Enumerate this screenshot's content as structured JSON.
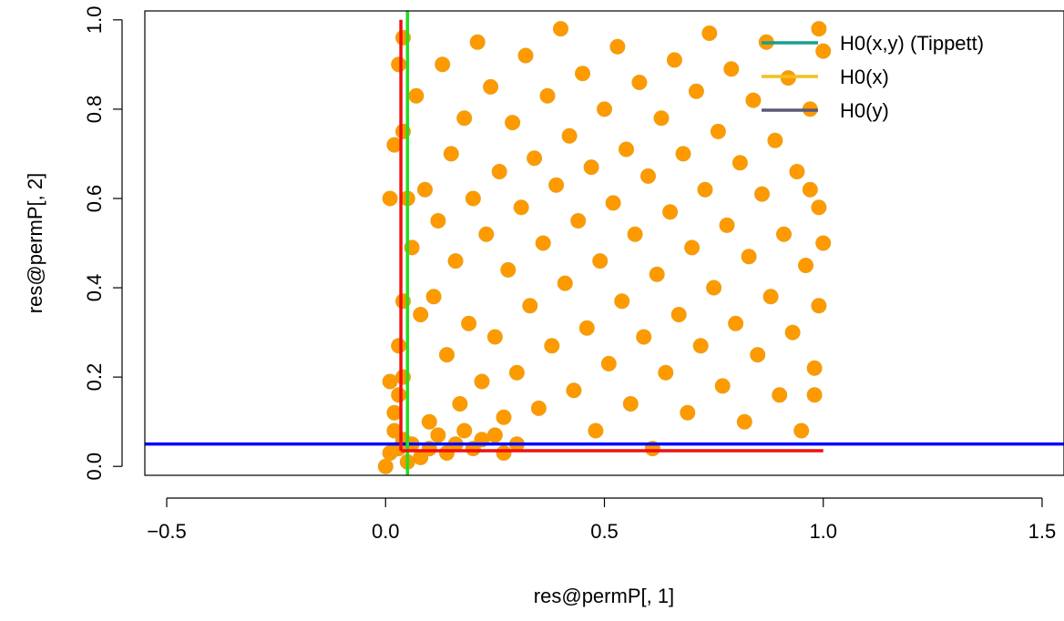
{
  "chart_data": {
    "type": "scatter",
    "title": "",
    "xlabel": "res@permP[, 1]",
    "ylabel": "res@permP[, 2]",
    "xlim": [
      -0.55,
      1.55
    ],
    "ylim": [
      -0.02,
      1.02
    ],
    "x_ticks": [
      -0.5,
      0.0,
      0.5,
      1.0,
      1.5
    ],
    "x_tick_labels": [
      "−0.5",
      "0.0",
      "0.5",
      "1.0",
      "1.5"
    ],
    "y_ticks": [
      0.0,
      0.2,
      0.4,
      0.6,
      0.8,
      1.0
    ],
    "y_tick_labels": [
      "0.0",
      "0.2",
      "0.4",
      "0.6",
      "0.8",
      "1.0"
    ],
    "grid": false,
    "legend": {
      "placement": "top-right",
      "entries": [
        {
          "label": "H0(x,y) (Tippett)",
          "color": "#1a9e8f"
        },
        {
          "label": "H0(x)",
          "color": "#f2c01d"
        },
        {
          "label": "H0(y)",
          "color": "#5a5a78"
        }
      ]
    },
    "reference_lines": [
      {
        "orientation": "horizontal",
        "y": 0.05,
        "color": "#0000ff"
      },
      {
        "orientation": "vertical",
        "x": 0.05,
        "color": "#22dd22"
      },
      {
        "orientation": "vertical",
        "x": 0.035,
        "y_range": [
          0.035,
          1.0
        ],
        "color": "#ee1111"
      },
      {
        "orientation": "horizontal",
        "y": 0.035,
        "x_range": [
          0.035,
          1.0
        ],
        "color": "#ee1111"
      }
    ],
    "points_style": {
      "fill": "#ff9900",
      "stroke": "#e8a21a"
    },
    "points": [
      [
        0.0,
        0.0
      ],
      [
        0.01,
        0.03
      ],
      [
        0.02,
        0.08
      ],
      [
        0.03,
        0.04
      ],
      [
        0.04,
        0.06
      ],
      [
        0.05,
        0.01
      ],
      [
        0.06,
        0.05
      ],
      [
        0.08,
        0.02
      ],
      [
        0.1,
        0.04
      ],
      [
        0.12,
        0.07
      ],
      [
        0.14,
        0.03
      ],
      [
        0.16,
        0.05
      ],
      [
        0.18,
        0.08
      ],
      [
        0.2,
        0.04
      ],
      [
        0.22,
        0.06
      ],
      [
        0.25,
        0.07
      ],
      [
        0.27,
        0.03
      ],
      [
        0.3,
        0.05
      ],
      [
        0.02,
        0.12
      ],
      [
        0.03,
        0.16
      ],
      [
        0.04,
        0.2
      ],
      [
        0.01,
        0.19
      ],
      [
        0.03,
        0.27
      ],
      [
        0.04,
        0.37
      ],
      [
        0.01,
        0.6
      ],
      [
        0.02,
        0.72
      ],
      [
        0.03,
        0.9
      ],
      [
        0.04,
        0.96
      ],
      [
        0.05,
        0.6
      ],
      [
        0.04,
        0.75
      ],
      [
        0.06,
        0.49
      ],
      [
        0.07,
        0.83
      ],
      [
        0.08,
        0.34
      ],
      [
        0.09,
        0.62
      ],
      [
        0.1,
        0.1
      ],
      [
        0.11,
        0.38
      ],
      [
        0.12,
        0.55
      ],
      [
        0.13,
        0.9
      ],
      [
        0.14,
        0.25
      ],
      [
        0.15,
        0.7
      ],
      [
        0.16,
        0.46
      ],
      [
        0.17,
        0.14
      ],
      [
        0.18,
        0.78
      ],
      [
        0.19,
        0.32
      ],
      [
        0.2,
        0.6
      ],
      [
        0.21,
        0.95
      ],
      [
        0.22,
        0.19
      ],
      [
        0.23,
        0.52
      ],
      [
        0.24,
        0.85
      ],
      [
        0.25,
        0.29
      ],
      [
        0.26,
        0.66
      ],
      [
        0.27,
        0.11
      ],
      [
        0.28,
        0.44
      ],
      [
        0.29,
        0.77
      ],
      [
        0.3,
        0.21
      ],
      [
        0.31,
        0.58
      ],
      [
        0.32,
        0.92
      ],
      [
        0.33,
        0.36
      ],
      [
        0.34,
        0.69
      ],
      [
        0.35,
        0.13
      ],
      [
        0.36,
        0.5
      ],
      [
        0.37,
        0.83
      ],
      [
        0.38,
        0.27
      ],
      [
        0.39,
        0.63
      ],
      [
        0.4,
        0.98
      ],
      [
        0.41,
        0.41
      ],
      [
        0.42,
        0.74
      ],
      [
        0.43,
        0.17
      ],
      [
        0.44,
        0.55
      ],
      [
        0.45,
        0.88
      ],
      [
        0.46,
        0.31
      ],
      [
        0.47,
        0.67
      ],
      [
        0.48,
        0.08
      ],
      [
        0.49,
        0.46
      ],
      [
        0.5,
        0.8
      ],
      [
        0.51,
        0.23
      ],
      [
        0.52,
        0.59
      ],
      [
        0.53,
        0.94
      ],
      [
        0.54,
        0.37
      ],
      [
        0.55,
        0.71
      ],
      [
        0.56,
        0.14
      ],
      [
        0.57,
        0.52
      ],
      [
        0.58,
        0.86
      ],
      [
        0.59,
        0.29
      ],
      [
        0.6,
        0.65
      ],
      [
        0.61,
        0.04
      ],
      [
        0.62,
        0.43
      ],
      [
        0.63,
        0.78
      ],
      [
        0.64,
        0.21
      ],
      [
        0.65,
        0.57
      ],
      [
        0.66,
        0.91
      ],
      [
        0.67,
        0.34
      ],
      [
        0.68,
        0.7
      ],
      [
        0.69,
        0.12
      ],
      [
        0.7,
        0.49
      ],
      [
        0.71,
        0.84
      ],
      [
        0.72,
        0.27
      ],
      [
        0.73,
        0.62
      ],
      [
        0.74,
        0.97
      ],
      [
        0.75,
        0.4
      ],
      [
        0.76,
        0.75
      ],
      [
        0.77,
        0.18
      ],
      [
        0.78,
        0.54
      ],
      [
        0.79,
        0.89
      ],
      [
        0.8,
        0.32
      ],
      [
        0.81,
        0.68
      ],
      [
        0.82,
        0.1
      ],
      [
        0.83,
        0.47
      ],
      [
        0.84,
        0.82
      ],
      [
        0.85,
        0.25
      ],
      [
        0.86,
        0.61
      ],
      [
        0.87,
        0.95
      ],
      [
        0.88,
        0.38
      ],
      [
        0.89,
        0.73
      ],
      [
        0.9,
        0.16
      ],
      [
        0.91,
        0.52
      ],
      [
        0.92,
        0.87
      ],
      [
        0.93,
        0.3
      ],
      [
        0.94,
        0.66
      ],
      [
        0.95,
        0.08
      ],
      [
        0.96,
        0.45
      ],
      [
        0.97,
        0.8
      ],
      [
        0.98,
        0.22
      ],
      [
        0.99,
        0.58
      ],
      [
        1.0,
        0.93
      ],
      [
        0.98,
        0.16
      ],
      [
        0.99,
        0.36
      ],
      [
        0.97,
        0.62
      ],
      [
        1.0,
        0.5
      ],
      [
        0.99,
        0.98
      ]
    ]
  }
}
